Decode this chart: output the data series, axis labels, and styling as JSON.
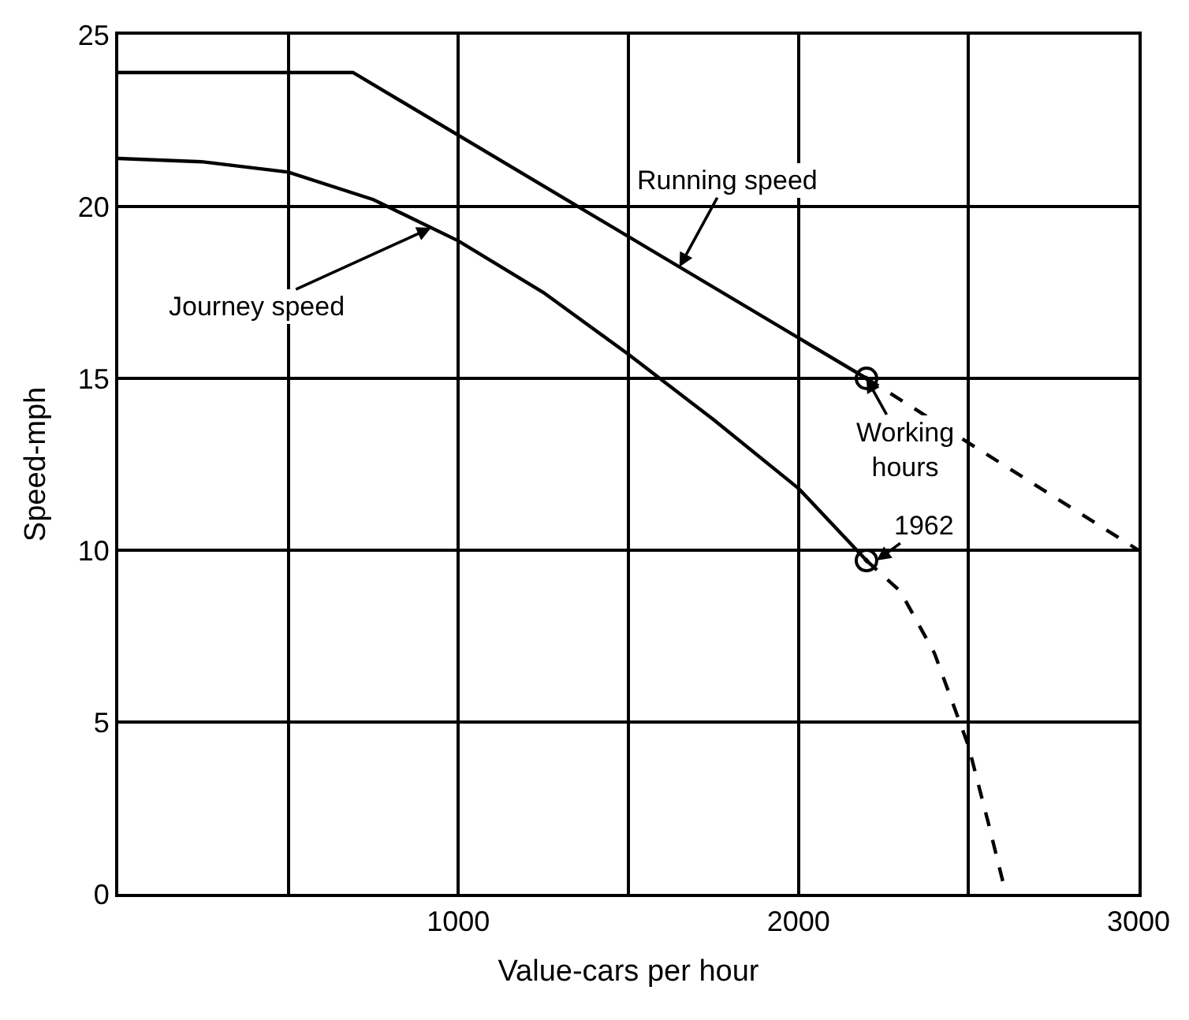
{
  "chart_data": {
    "type": "line",
    "xlabel": "Value-cars per hour",
    "ylabel": "Speed-mph",
    "xlim": [
      0,
      3000
    ],
    "ylim": [
      0,
      25
    ],
    "xticks": [
      {
        "value": 0,
        "label": null
      },
      {
        "value": 500,
        "label": null
      },
      1000,
      {
        "value": 1500,
        "label": null
      },
      2000,
      {
        "value": 2500,
        "label": null
      },
      3000
    ],
    "yticks": [
      0,
      5,
      10,
      15,
      20,
      25
    ],
    "grid": true,
    "series": [
      {
        "color": "#000000",
        "line_style": "solid",
        "x": [
          0,
          690,
          2200
        ],
        "values": [
          23.9,
          23.9,
          15
        ]
      },
      {
        "color": "#000000",
        "line_style": "dashed",
        "x": [
          2200,
          3000
        ],
        "values": [
          15,
          10
        ]
      },
      {
        "color": "#000000",
        "line_style": "solid",
        "x": [
          0,
          250,
          500,
          750,
          1000,
          1250,
          1500,
          1750,
          2000,
          2200
        ],
        "values": [
          21.4,
          21.3,
          21.0,
          20.2,
          19.0,
          17.5,
          15.7,
          13.8,
          11.8,
          9.7
        ]
      },
      {
        "color": "#000000",
        "line_style": "dashed",
        "x": [
          2200,
          2300,
          2400,
          2500,
          2560,
          2610
        ],
        "values": [
          9.7,
          8.8,
          7.0,
          4.3,
          2.0,
          0
        ]
      },
      {
        "color": "#000000",
        "type": "scatter",
        "marker": "circle",
        "x": [
          2200,
          2200
        ],
        "values": [
          15,
          9.7
        ]
      }
    ],
    "annotations": [
      {
        "text": "Running speed",
        "x": 1650,
        "y": 18.24
      },
      {
        "text": "Journey speed",
        "x": 920,
        "y": 19.38
      },
      {
        "text": "Working\nhours",
        "x": 2200,
        "y": 15
      },
      {
        "text": "1962",
        "x": 2230,
        "y": 9.7
      }
    ]
  }
}
